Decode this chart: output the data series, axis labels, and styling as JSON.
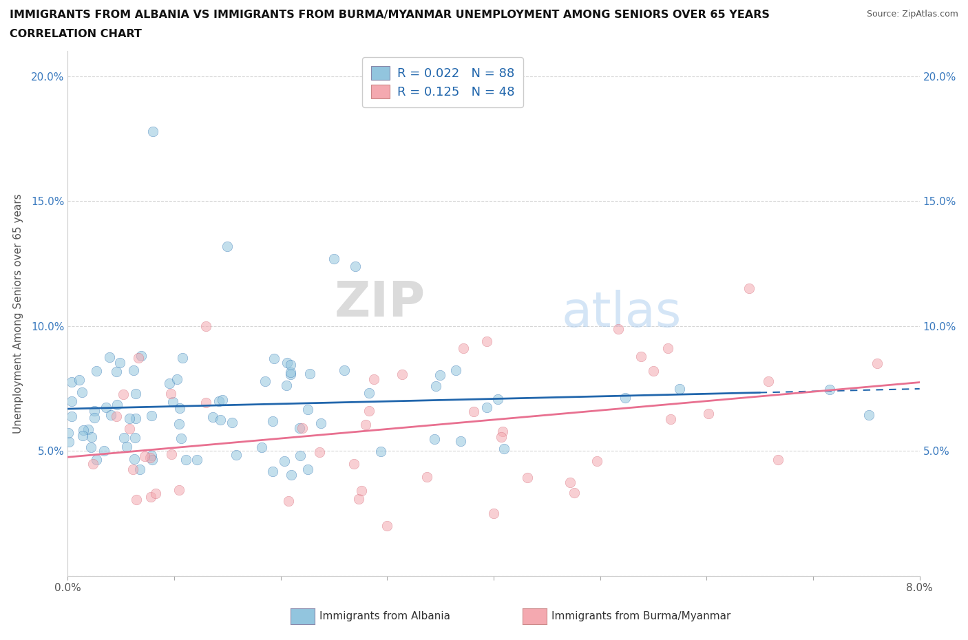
{
  "title_line1": "IMMIGRANTS FROM ALBANIA VS IMMIGRANTS FROM BURMA/MYANMAR UNEMPLOYMENT AMONG SENIORS OVER 65 YEARS",
  "title_line2": "CORRELATION CHART",
  "source": "Source: ZipAtlas.com",
  "ylabel": "Unemployment Among Seniors over 65 years",
  "xlim": [
    0.0,
    0.08
  ],
  "ylim": [
    0.0,
    0.21
  ],
  "yticks": [
    0.0,
    0.05,
    0.1,
    0.15,
    0.2
  ],
  "ytick_labels": [
    "",
    "5.0%",
    "10.0%",
    "15.0%",
    "20.0%"
  ],
  "xticks": [
    0.0,
    0.01,
    0.02,
    0.03,
    0.04,
    0.05,
    0.06,
    0.07,
    0.08
  ],
  "xtick_labels": [
    "0.0%",
    "",
    "",
    "",
    "",
    "",
    "",
    "",
    "8.0%"
  ],
  "albania_color": "#92c5de",
  "burma_color": "#f4a9b0",
  "albania_line_color": "#2166ac",
  "burma_line_color": "#e87090",
  "R_albania": 0.022,
  "N_albania": 88,
  "R_burma": 0.125,
  "N_burma": 48,
  "legend_label_albania": "Immigrants from Albania",
  "legend_label_burma": "Immigrants from Burma/Myanmar",
  "watermark_zip": "ZIP",
  "watermark_atlas": "atlas",
  "background_color": "#ffffff"
}
